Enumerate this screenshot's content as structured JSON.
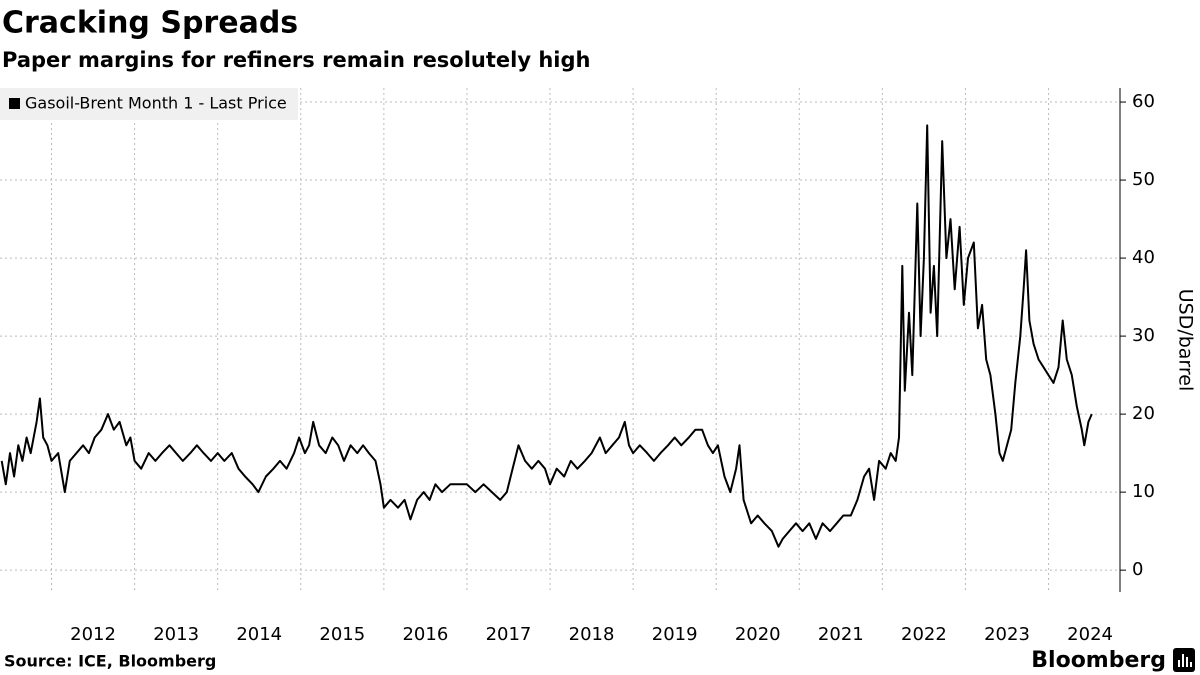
{
  "chart_data": {
    "type": "line",
    "title": "Cracking Spreads",
    "subtitle": "Paper margins for refiners remain resolutely high",
    "y_label": "USD/barrel",
    "source": "Source: ICE, Bloomberg",
    "brand": "Bloomberg",
    "x": [
      2011.4,
      2011.45,
      2011.5,
      2011.55,
      2011.6,
      2011.65,
      2011.7,
      2011.75,
      2011.82,
      2011.86,
      2011.9,
      2011.95,
      2012.0,
      2012.08,
      2012.16,
      2012.22,
      2012.3,
      2012.38,
      2012.45,
      2012.52,
      2012.6,
      2012.68,
      2012.75,
      2012.82,
      2012.9,
      2012.95,
      2013.0,
      2013.08,
      2013.17,
      2013.25,
      2013.33,
      2013.42,
      2013.5,
      2013.58,
      2013.67,
      2013.75,
      2013.83,
      2013.92,
      2014.0,
      2014.08,
      2014.17,
      2014.25,
      2014.33,
      2014.42,
      2014.49,
      2014.58,
      2014.67,
      2014.75,
      2014.83,
      2014.92,
      2014.98,
      2015.05,
      2015.1,
      2015.15,
      2015.22,
      2015.3,
      2015.38,
      2015.45,
      2015.52,
      2015.6,
      2015.68,
      2015.75,
      2015.82,
      2015.9,
      2015.96,
      2016.0,
      2016.08,
      2016.17,
      2016.25,
      2016.32,
      2016.4,
      2016.48,
      2016.55,
      2016.62,
      2016.7,
      2016.8,
      2016.9,
      2017.0,
      2017.1,
      2017.2,
      2017.3,
      2017.4,
      2017.48,
      2017.55,
      2017.62,
      2017.7,
      2017.78,
      2017.86,
      2017.94,
      2018.0,
      2018.08,
      2018.17,
      2018.25,
      2018.33,
      2018.42,
      2018.5,
      2018.6,
      2018.67,
      2018.75,
      2018.83,
      2018.9,
      2018.95,
      2019.0,
      2019.08,
      2019.17,
      2019.25,
      2019.33,
      2019.42,
      2019.5,
      2019.58,
      2019.67,
      2019.75,
      2019.83,
      2019.9,
      2019.96,
      2020.02,
      2020.1,
      2020.17,
      2020.24,
      2020.28,
      2020.33,
      2020.42,
      2020.5,
      2020.58,
      2020.67,
      2020.75,
      2020.8,
      2020.88,
      2020.96,
      2021.04,
      2021.12,
      2021.2,
      2021.28,
      2021.37,
      2021.45,
      2021.53,
      2021.62,
      2021.7,
      2021.78,
      2021.84,
      2021.9,
      2021.96,
      2022.04,
      2022.1,
      2022.16,
      2022.2,
      2022.24,
      2022.27,
      2022.32,
      2022.36,
      2022.42,
      2022.46,
      2022.5,
      2022.54,
      2022.58,
      2022.62,
      2022.66,
      2022.72,
      2022.77,
      2022.82,
      2022.87,
      2022.93,
      2022.98,
      2023.03,
      2023.1,
      2023.15,
      2023.2,
      2023.25,
      2023.3,
      2023.36,
      2023.41,
      2023.45,
      2023.5,
      2023.55,
      2023.6,
      2023.66,
      2023.7,
      2023.73,
      2023.77,
      2023.82,
      2023.88,
      2023.94,
      2024.0,
      2024.06,
      2024.12,
      2024.17,
      2024.22,
      2024.28,
      2024.34,
      2024.4,
      2024.43,
      2024.48,
      2024.52
    ],
    "series": [
      {
        "name": "Gasoil-Brent Month 1 - Last Price",
        "color": "#000000",
        "values": [
          14,
          11,
          15,
          12,
          16,
          14,
          17,
          15,
          19,
          22,
          17,
          16,
          14,
          15,
          10,
          14,
          15,
          16,
          15,
          17,
          18,
          20,
          18,
          19,
          16,
          17,
          14,
          13,
          15,
          14,
          15,
          16,
          15,
          14,
          15,
          16,
          15,
          14,
          15,
          14,
          15,
          13,
          12,
          11,
          10,
          12,
          13,
          14,
          13,
          15,
          17,
          15,
          16,
          19,
          16,
          15,
          17,
          16,
          14,
          16,
          15,
          16,
          15,
          14,
          11,
          8,
          9,
          8,
          9,
          6.5,
          9,
          10,
          9,
          11,
          10,
          11,
          11,
          11,
          10,
          11,
          10,
          9,
          10,
          13,
          16,
          14,
          13,
          14,
          13,
          11,
          13,
          12,
          14,
          13,
          14,
          15,
          17,
          15,
          16,
          17,
          19,
          16,
          15,
          16,
          15,
          14,
          15,
          16,
          17,
          16,
          17,
          18,
          18,
          16,
          15,
          16,
          12,
          10,
          13,
          16,
          9,
          6,
          7,
          6,
          5,
          3,
          4,
          5,
          6,
          5,
          6,
          4,
          6,
          5,
          6,
          7,
          7,
          9,
          12,
          13,
          9,
          14,
          13,
          15,
          14,
          17,
          39,
          23,
          33,
          25,
          47,
          30,
          40,
          57,
          33,
          39,
          30,
          55,
          40,
          45,
          36,
          44,
          34,
          40,
          42,
          31,
          34,
          27,
          25,
          20,
          15,
          14,
          16,
          18,
          24,
          30,
          36,
          41,
          32,
          29,
          27,
          26,
          25,
          24,
          26,
          32,
          27,
          25,
          21,
          18,
          16,
          19,
          20
        ]
      }
    ],
    "xlim": [
      2011.38,
      2024.86
    ],
    "xticks": [
      2012,
      2013,
      2014,
      2015,
      2016,
      2017,
      2018,
      2019,
      2020,
      2021,
      2022,
      2023,
      2024
    ],
    "ylim": [
      -2.8,
      61.8
    ],
    "yticks": [
      0,
      10,
      20,
      30,
      40,
      50,
      60
    ],
    "grid": true,
    "legend": "top-left"
  }
}
